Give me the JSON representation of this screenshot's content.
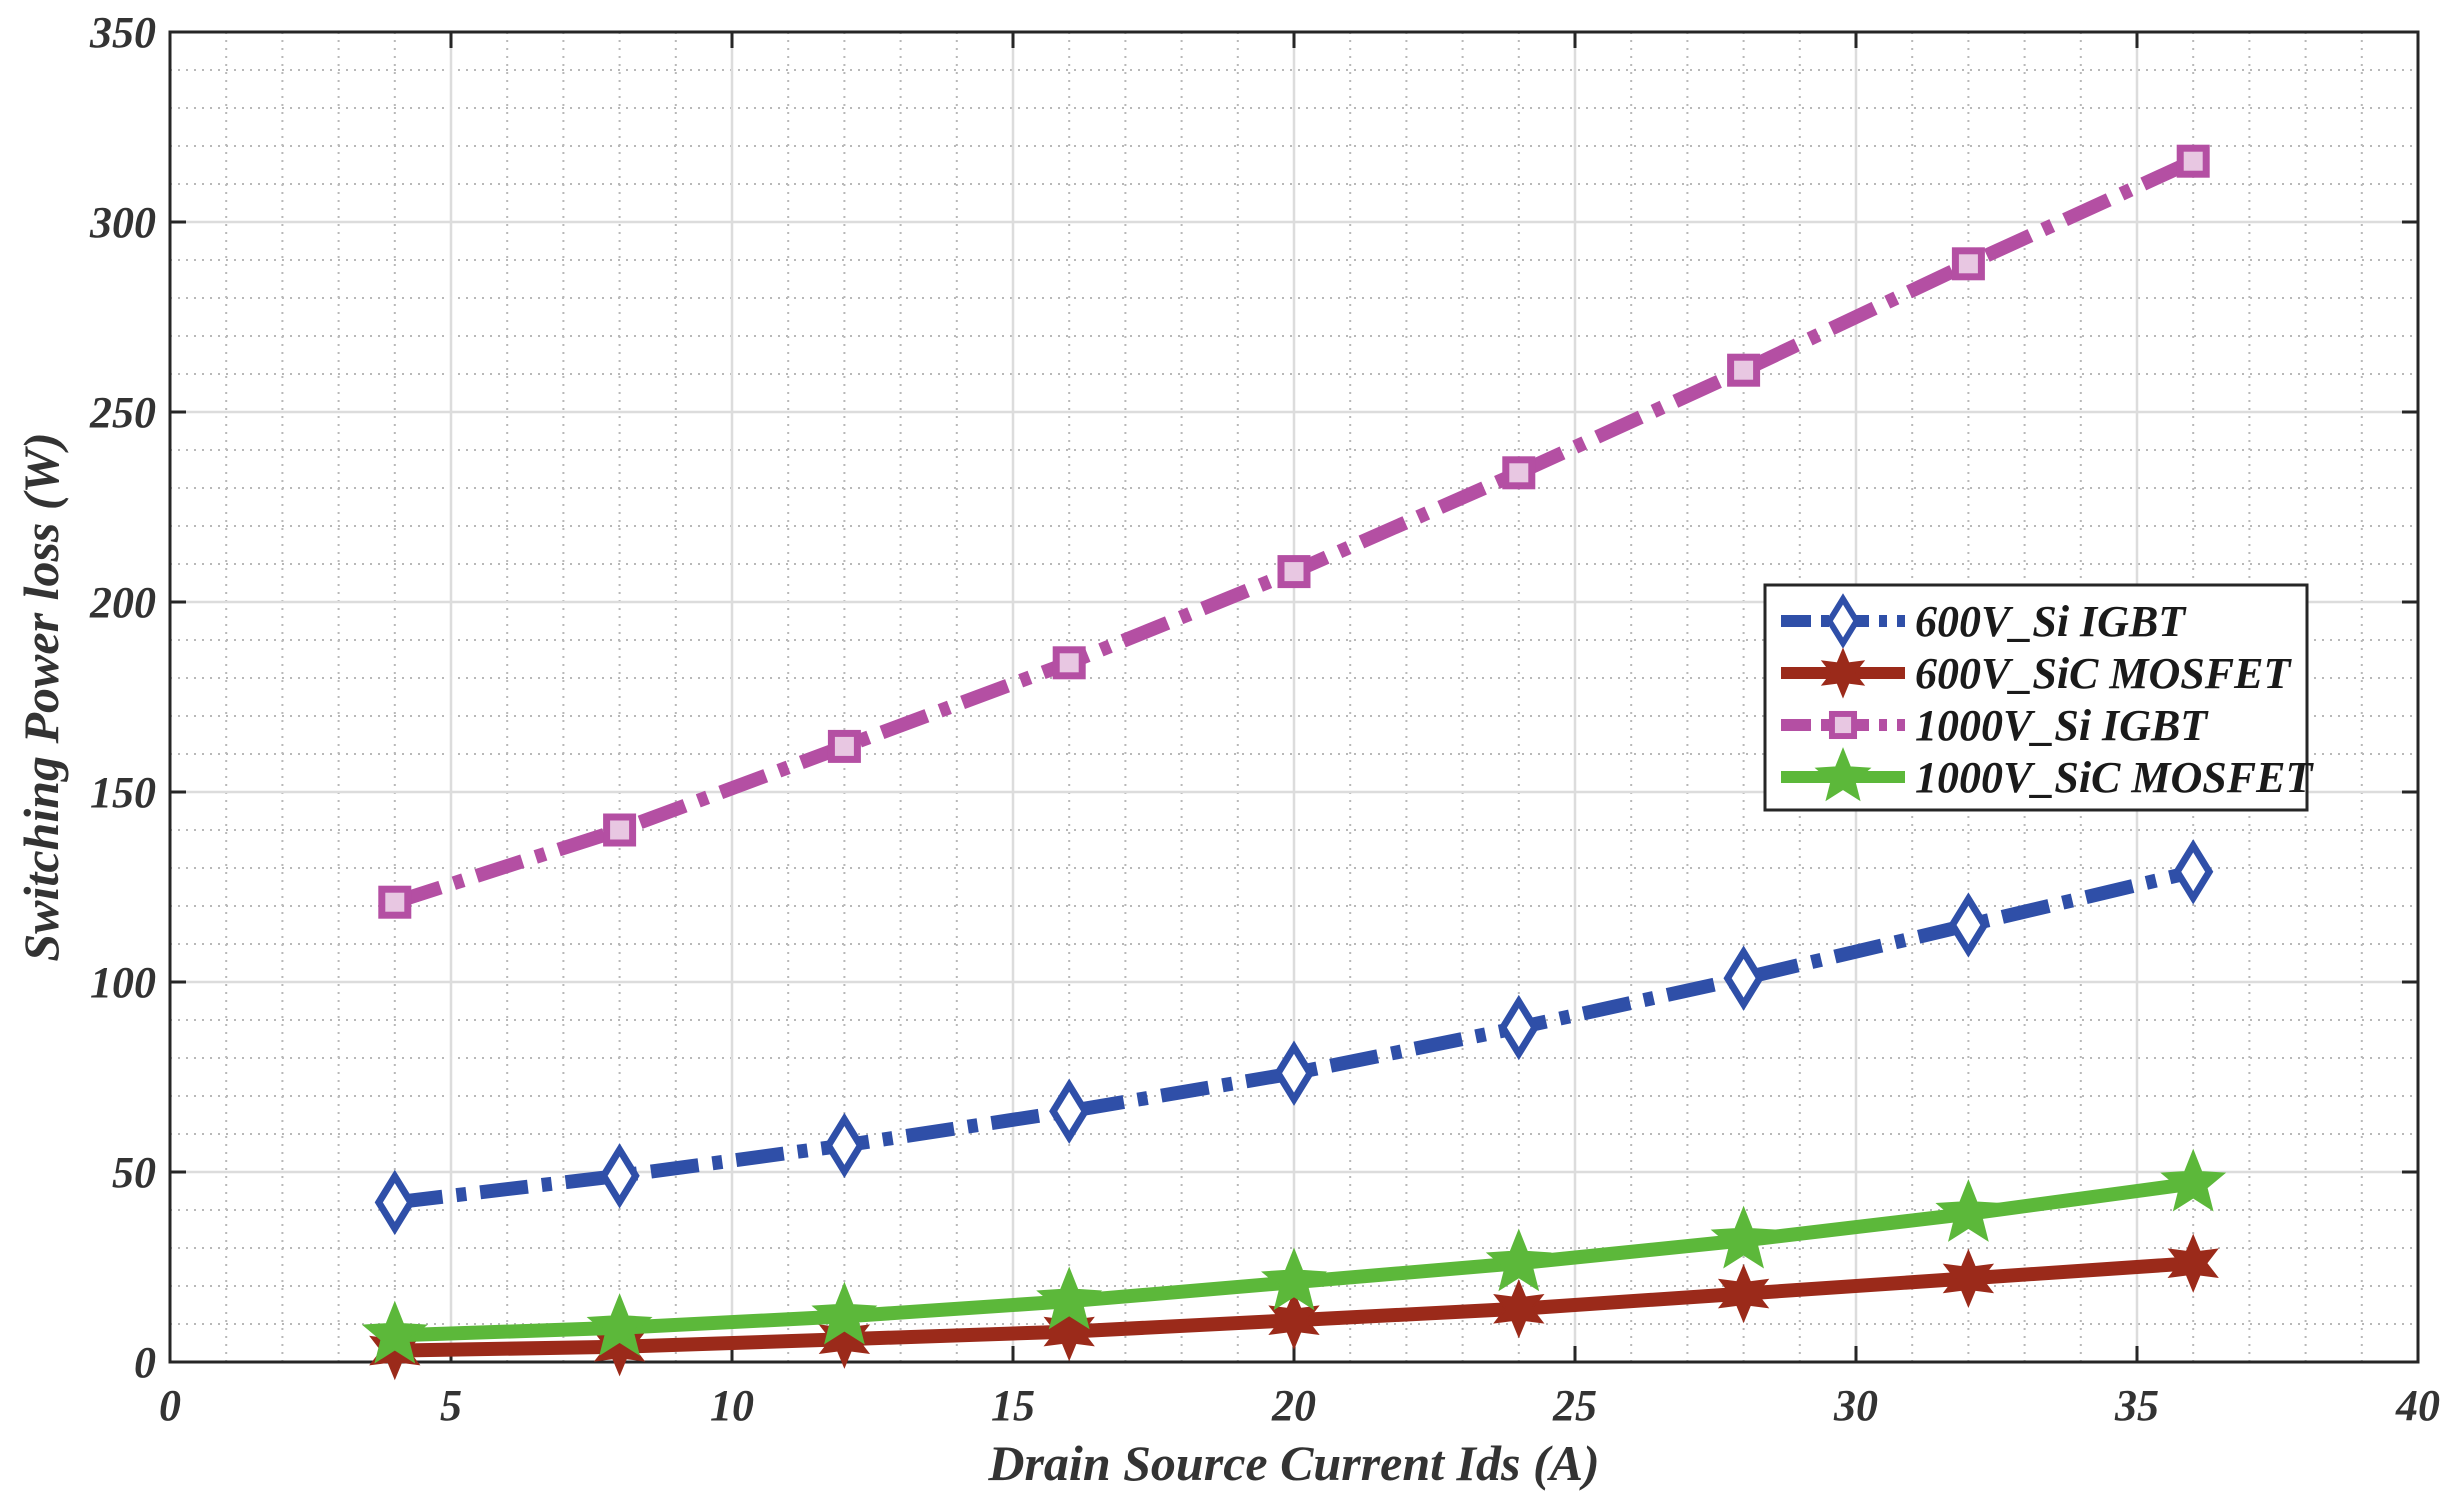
{
  "chart_data": {
    "type": "line",
    "title": "",
    "xlabel": "Drain Source Current Ids (A)",
    "ylabel": "Switching Power loss (W)",
    "xlim": [
      0,
      40
    ],
    "ylim": [
      0,
      350
    ],
    "xticks": [
      0,
      5,
      10,
      15,
      20,
      25,
      30,
      35,
      40
    ],
    "yticks": [
      0,
      50,
      100,
      150,
      200,
      250,
      300,
      350
    ],
    "grid": true,
    "minor_grid": true,
    "legend_position": "right-center",
    "x": [
      4,
      8,
      12,
      16,
      20,
      24,
      28,
      32,
      36
    ],
    "series": [
      {
        "name": "600V_Si IGBT",
        "color": "#2f4fa8",
        "line_style": "dash-dot",
        "marker": "diamond",
        "values": [
          42,
          49,
          57,
          66,
          76,
          88,
          101,
          115,
          129
        ]
      },
      {
        "name": "600V_SiC MOSFET",
        "color": "#9b2a1a",
        "line_style": "solid",
        "marker": "hexagram",
        "values": [
          3,
          4,
          6,
          8,
          11,
          14,
          18,
          22,
          26
        ]
      },
      {
        "name": "1000V_Si IGBT",
        "color": "#b44fa3",
        "line_style": "dash-dot",
        "marker": "square",
        "values": [
          121,
          140,
          162,
          184,
          208,
          234,
          261,
          289,
          316
        ]
      },
      {
        "name": "1000V_SiC MOSFET",
        "color": "#5cb83a",
        "line_style": "solid",
        "marker": "pentagram",
        "values": [
          7,
          9,
          12,
          16,
          21,
          26,
          32,
          39,
          47
        ]
      }
    ]
  }
}
